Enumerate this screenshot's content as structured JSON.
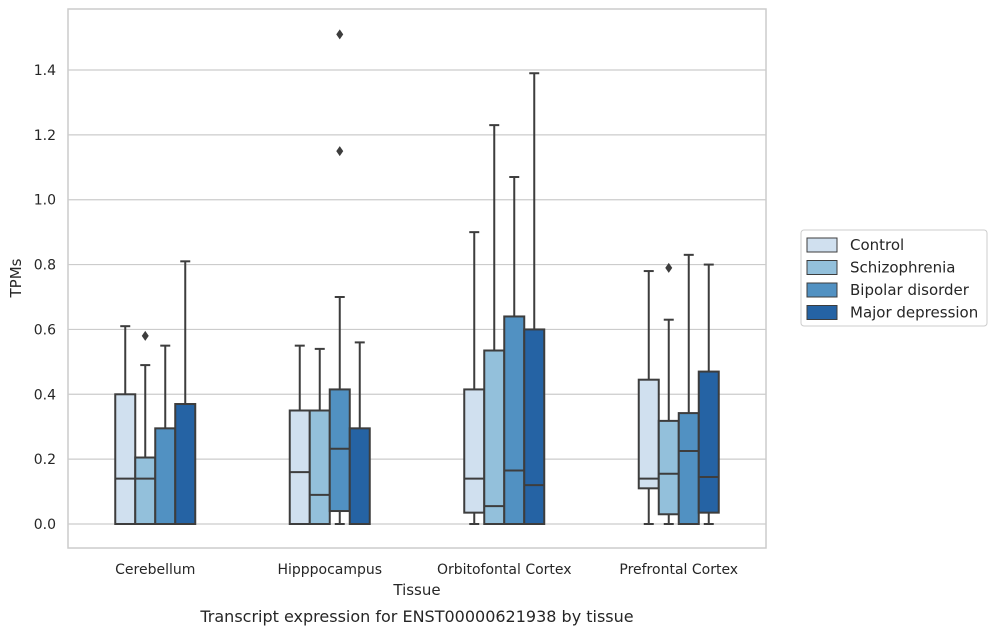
{
  "chart_data": {
    "type": "box",
    "title": "",
    "caption": "Transcript expression for ENST00000621938 by tissue",
    "xlabel": "Tissue",
    "ylabel": "TPMs",
    "ylim": [
      -0.075,
      1.6
    ],
    "yticks": [
      "0.0",
      "0.2",
      "0.4",
      "0.6",
      "0.8",
      "1.0",
      "1.2",
      "1.4"
    ],
    "grid": "horizontal",
    "legend_position": "right",
    "categories": [
      "Cerebellum",
      "Hipppocampus",
      "Orbitofontal Cortex",
      "Prefrontal Cortex"
    ],
    "series": [
      {
        "name": "Control",
        "color": "#d0e0ef",
        "boxes": [
          {
            "whislo": 0.0,
            "q1": 0.0,
            "med": 0.14,
            "q3": 0.4,
            "whishi": 0.61,
            "fliers": []
          },
          {
            "whislo": 0.0,
            "q1": 0.0,
            "med": 0.16,
            "q3": 0.35,
            "whishi": 0.55,
            "fliers": []
          },
          {
            "whislo": 0.0,
            "q1": 0.035,
            "med": 0.14,
            "q3": 0.415,
            "whishi": 0.9,
            "fliers": []
          },
          {
            "whislo": 0.0,
            "q1": 0.11,
            "med": 0.14,
            "q3": 0.445,
            "whishi": 0.78,
            "fliers": []
          }
        ]
      },
      {
        "name": "Schizophrenia",
        "color": "#93c0db",
        "boxes": [
          {
            "whislo": 0.0,
            "q1": 0.0,
            "med": 0.14,
            "q3": 0.205,
            "whishi": 0.49,
            "fliers": [
              0.58
            ]
          },
          {
            "whislo": 0.0,
            "q1": 0.0,
            "med": 0.09,
            "q3": 0.35,
            "whishi": 0.54,
            "fliers": []
          },
          {
            "whislo": 0.0,
            "q1": 0.0,
            "med": 0.055,
            "q3": 0.535,
            "whishi": 1.23,
            "fliers": []
          },
          {
            "whislo": 0.0,
            "q1": 0.03,
            "med": 0.155,
            "q3": 0.318,
            "whishi": 0.63,
            "fliers": [
              0.79
            ]
          }
        ]
      },
      {
        "name": "Bipolar disorder",
        "color": "#5191c2",
        "boxes": [
          {
            "whislo": 0.0,
            "q1": 0.0,
            "med": 0.0,
            "q3": 0.295,
            "whishi": 0.55,
            "fliers": []
          },
          {
            "whislo": 0.0,
            "q1": 0.04,
            "med": 0.232,
            "q3": 0.415,
            "whishi": 0.7,
            "fliers": [
              1.15,
              1.51
            ]
          },
          {
            "whislo": 0.0,
            "q1": 0.0,
            "med": 0.165,
            "q3": 0.64,
            "whishi": 1.07,
            "fliers": []
          },
          {
            "whislo": 0.0,
            "q1": 0.0,
            "med": 0.225,
            "q3": 0.342,
            "whishi": 0.83,
            "fliers": []
          }
        ]
      },
      {
        "name": "Major depression",
        "color": "#2563a4",
        "boxes": [
          {
            "whislo": 0.0,
            "q1": 0.0,
            "med": 0.0,
            "q3": 0.37,
            "whishi": 0.81,
            "fliers": []
          },
          {
            "whislo": 0.0,
            "q1": 0.0,
            "med": 0.0,
            "q3": 0.295,
            "whishi": 0.56,
            "fliers": []
          },
          {
            "whislo": 0.0,
            "q1": 0.0,
            "med": 0.12,
            "q3": 0.6,
            "whishi": 1.39,
            "fliers": []
          },
          {
            "whislo": 0.0,
            "q1": 0.035,
            "med": 0.145,
            "q3": 0.47,
            "whishi": 0.8,
            "fliers": []
          }
        ]
      }
    ]
  }
}
